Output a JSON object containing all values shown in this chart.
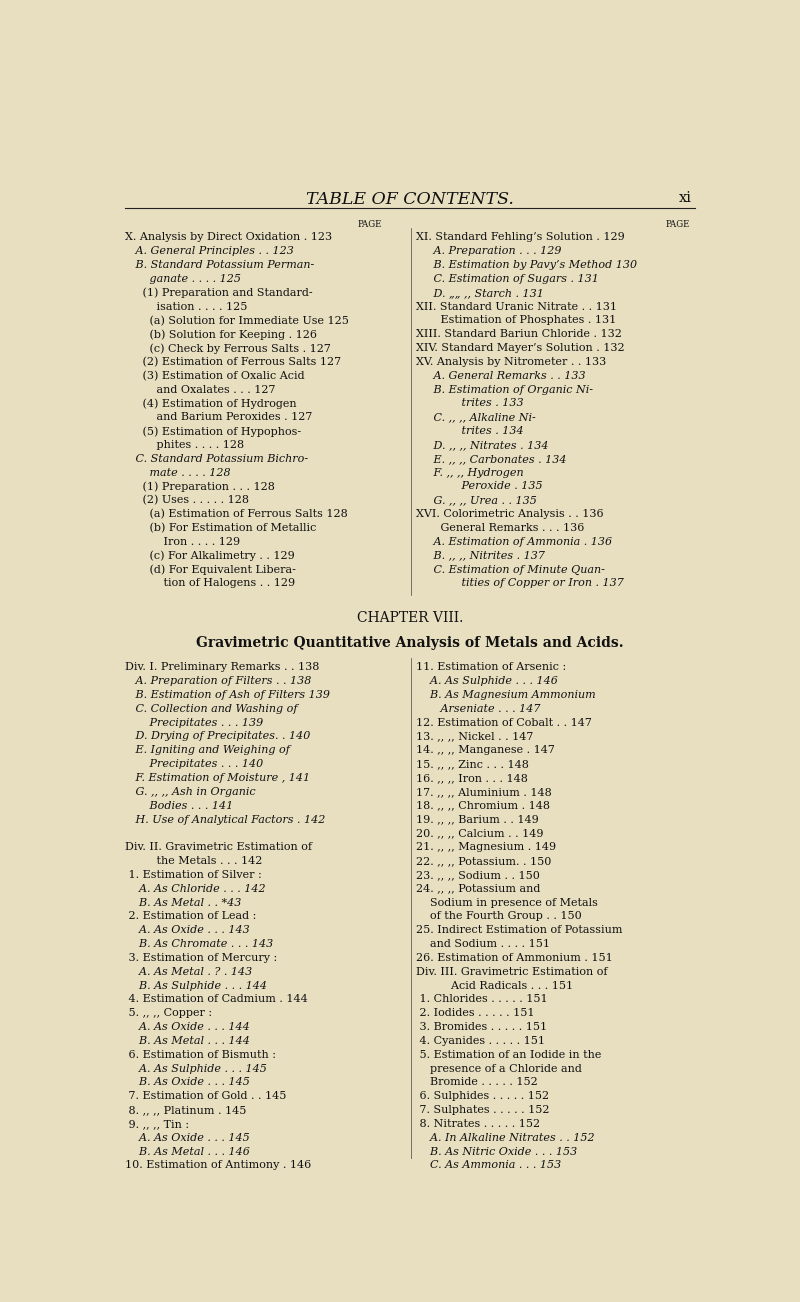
{
  "bg_color": "#e8dfc0",
  "title": "TABLE OF CONTENTS.",
  "page_num": "xi",
  "left_col_lines": [
    [
      "X. Analysis by Direct Oxidation . 123",
      "normal"
    ],
    [
      "   A. General Principles . . 123",
      "italic"
    ],
    [
      "   B. Standard Potassium Perman-",
      "italic"
    ],
    [
      "       ganate . . . . 125",
      "italic"
    ],
    [
      "     (1) Preparation and Standard-",
      "normal"
    ],
    [
      "         isation . . . . 125",
      "normal"
    ],
    [
      "       (a) Solution for Immediate Use 125",
      "normal"
    ],
    [
      "       (b) Solution for Keeping . 126",
      "normal"
    ],
    [
      "       (c) Check by Ferrous Salts . 127",
      "normal"
    ],
    [
      "     (2) Estimation of Ferrous Salts 127",
      "normal"
    ],
    [
      "     (3) Estimation of Oxalic Acid",
      "normal"
    ],
    [
      "         and Oxalates . . . 127",
      "normal"
    ],
    [
      "     (4) Estimation of Hydrogen",
      "normal"
    ],
    [
      "         and Barium Peroxides . 127",
      "normal"
    ],
    [
      "     (5) Estimation of Hypophos-",
      "normal"
    ],
    [
      "         phites . . . . 128",
      "normal"
    ],
    [
      "   C. Standard Potassium Bichro-",
      "italic"
    ],
    [
      "       mate . . . . 128",
      "italic"
    ],
    [
      "     (1) Preparation . . . 128",
      "normal"
    ],
    [
      "     (2) Uses . . . . . 128",
      "normal"
    ],
    [
      "       (a) Estimation of Ferrous Salts 128",
      "normal"
    ],
    [
      "       (b) For Estimation of Metallic",
      "normal"
    ],
    [
      "           Iron . . . . 129",
      "normal"
    ],
    [
      "       (c) For Alkalimetry . . 129",
      "normal"
    ],
    [
      "       (d) For Equivalent Libera-",
      "normal"
    ],
    [
      "           tion of Halogens . . 129",
      "normal"
    ]
  ],
  "right_col_lines": [
    [
      "XI. Standard Fehling’s Solution . 129",
      "normal"
    ],
    [
      "     A. Preparation . . . 129",
      "italic"
    ],
    [
      "     B. Estimation by Pavy’s Method 130",
      "italic"
    ],
    [
      "     C. Estimation of Sugars . 131",
      "italic"
    ],
    [
      "     D. „„ ,, Starch . 131",
      "italic"
    ],
    [
      "XII. Standard Uranic Nitrate . . 131",
      "normal"
    ],
    [
      "       Estimation of Phosphates . 131",
      "normal"
    ],
    [
      "XIII. Standard Bariun Chloride . 132",
      "normal"
    ],
    [
      "XIV. Standard Mayer’s Solution . 132",
      "normal"
    ],
    [
      "XV. Analysis by Nitrometer . . 133",
      "normal"
    ],
    [
      "     A. General Remarks . . 133",
      "italic"
    ],
    [
      "     B. Estimation of Organic Ni-",
      "italic"
    ],
    [
      "             trites . 133",
      "italic"
    ],
    [
      "     C. ,, ,, Alkaline Ni-",
      "italic"
    ],
    [
      "             trites . 134",
      "italic"
    ],
    [
      "     D. ,, ,, Nitrates . 134",
      "italic"
    ],
    [
      "     E. ,, ,, Carbonates . 134",
      "italic"
    ],
    [
      "     F. ,, ,, Hydrogen",
      "italic"
    ],
    [
      "             Peroxide . 135",
      "italic"
    ],
    [
      "     G. ,, ,, Urea . . 135",
      "italic"
    ],
    [
      "XVI. Colorimetric Analysis . . 136",
      "normal"
    ],
    [
      "       General Remarks . . . 136",
      "normal"
    ],
    [
      "     A. Estimation of Ammonia . 136",
      "italic"
    ],
    [
      "     B. ,, ,, Nitrites . 137",
      "italic"
    ],
    [
      "     C. Estimation of Minute Quan-",
      "italic"
    ],
    [
      "             tities of Copper or Iron . 137",
      "italic"
    ]
  ],
  "chapter_title": "CHAPTER VIII.",
  "chapter_subtitle": "Gravimetric Quantitative Analysis of Metals and Acids.",
  "left_col2_lines": [
    [
      "Div. I. Preliminary Remarks . . 138",
      "normal"
    ],
    [
      "   A. Preparation of Filters . . 138",
      "italic"
    ],
    [
      "   B. Estimation of Ash of Filters 139",
      "italic"
    ],
    [
      "   C. Collection and Washing of",
      "italic"
    ],
    [
      "       Precipitates . . . 139",
      "italic"
    ],
    [
      "   D. Drying of Precipitates. . 140",
      "italic"
    ],
    [
      "   E. Igniting and Weighing of",
      "italic"
    ],
    [
      "       Precipitates . . . 140",
      "italic"
    ],
    [
      "   F. Estimation of Moisture , 141",
      "italic"
    ],
    [
      "   G. ,, ,, Ash in Organic",
      "italic"
    ],
    [
      "       Bodies . . . 141",
      "italic"
    ],
    [
      "   H. Use of Analytical Factors . 142",
      "italic"
    ],
    [
      "",
      "normal"
    ],
    [
      "Div. II. Gravimetric Estimation of",
      "normal"
    ],
    [
      "         the Metals . . . 142",
      "normal"
    ],
    [
      " 1. Estimation of Silver :",
      "normal"
    ],
    [
      "    A. As Chloride . . . 142",
      "italic"
    ],
    [
      "    B. As Metal . . *43",
      "italic"
    ],
    [
      " 2. Estimation of Lead :",
      "normal"
    ],
    [
      "    A. As Oxide . . . 143",
      "italic"
    ],
    [
      "    B. As Chromate . . . 143",
      "italic"
    ],
    [
      " 3. Estimation of Mercury :",
      "normal"
    ],
    [
      "    A. As Metal . ? . 143",
      "italic"
    ],
    [
      "    B. As Sulphide . . . 144",
      "italic"
    ],
    [
      " 4. Estimation of Cadmium . 144",
      "normal"
    ],
    [
      " 5. ,, ,, Copper :",
      "normal"
    ],
    [
      "    A. As Oxide . . . 144",
      "italic"
    ],
    [
      "    B. As Metal . . . 144",
      "italic"
    ],
    [
      " 6. Estimation of Bismuth :",
      "normal"
    ],
    [
      "    A. As Sulphide . . . 145",
      "italic"
    ],
    [
      "    B. As Oxide . . . 145",
      "italic"
    ],
    [
      " 7. Estimation of Gold . . 145",
      "normal"
    ],
    [
      " 8. ,, ,, Platinum . 145",
      "normal"
    ],
    [
      " 9. ,, ,, Tin :",
      "normal"
    ],
    [
      "    A. As Oxide . . . 145",
      "italic"
    ],
    [
      "    B. As Metal . . . 146",
      "italic"
    ],
    [
      "10. Estimation of Antimony . 146",
      "normal"
    ]
  ],
  "right_col2_lines": [
    [
      "11. Estimation of Arsenic :",
      "normal"
    ],
    [
      "    A. As Sulphide . . . 146",
      "italic"
    ],
    [
      "    B. As Magnesium Ammonium",
      "italic"
    ],
    [
      "       Arseniate . . . 147",
      "italic"
    ],
    [
      "12. Estimation of Cobalt . . 147",
      "normal"
    ],
    [
      "13. ,, ,, Nickel . . 147",
      "normal"
    ],
    [
      "14. ,, ,, Manganese . 147",
      "normal"
    ],
    [
      "15. ,, ,, Zinc . . . 148",
      "normal"
    ],
    [
      "16. ,, ,, Iron . . . 148",
      "normal"
    ],
    [
      "17. ,, ,, Aluminium . 148",
      "normal"
    ],
    [
      "18. ,, ,, Chromium . 148",
      "normal"
    ],
    [
      "19. ,, ,, Barium . . 149",
      "normal"
    ],
    [
      "20. ,, ,, Calcium . . 149",
      "normal"
    ],
    [
      "21. ,, ,, Magnesium . 149",
      "normal"
    ],
    [
      "22. ,, ,, Potassium. . 150",
      "normal"
    ],
    [
      "23. ,, ,, Sodium . . 150",
      "normal"
    ],
    [
      "24. ,, ,, Potassium and",
      "normal"
    ],
    [
      "    Sodium in presence of Metals",
      "normal"
    ],
    [
      "    of the Fourth Group . . 150",
      "normal"
    ],
    [
      "25. Indirect Estimation of Potassium",
      "normal"
    ],
    [
      "    and Sodium . . . . 151",
      "normal"
    ],
    [
      "26. Estimation of Ammonium . 151",
      "normal"
    ],
    [
      "Div. III. Gravimetric Estimation of",
      "normal"
    ],
    [
      "          Acid Radicals . . . 151",
      "normal"
    ],
    [
      " 1. Chlorides . . . . . 151",
      "normal"
    ],
    [
      " 2. Iodides . . . . . 151",
      "normal"
    ],
    [
      " 3. Bromides . . . . . 151",
      "normal"
    ],
    [
      " 4. Cyanides . . . . . 151",
      "normal"
    ],
    [
      " 5. Estimation of an Iodide in the",
      "normal"
    ],
    [
      "    presence of a Chloride and",
      "normal"
    ],
    [
      "    Bromide . . . . . 152",
      "normal"
    ],
    [
      " 6. Sulphides . . . . . 152",
      "normal"
    ],
    [
      " 7. Sulphates . . . . . 152",
      "normal"
    ],
    [
      " 8. Nitrates . . . . . 152",
      "normal"
    ],
    [
      "    A. In Alkaline Nitrates . . 152",
      "italic"
    ],
    [
      "    B. As Nitric Oxide . . . 153",
      "italic"
    ],
    [
      "    C. As Ammonia . . . 153",
      "italic"
    ]
  ]
}
